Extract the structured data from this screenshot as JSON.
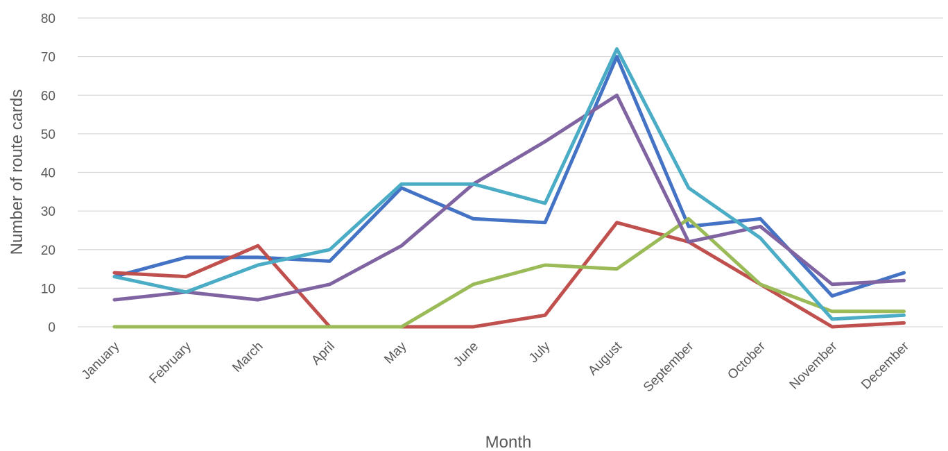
{
  "chart_data": {
    "type": "line",
    "title": "",
    "xlabel": "Month",
    "ylabel": "Number of route cards",
    "ylim": [
      0,
      80
    ],
    "yticks": [
      0,
      10,
      20,
      30,
      40,
      50,
      60,
      70,
      80
    ],
    "grid": true,
    "legend": "none",
    "categories": [
      "January",
      "February",
      "March",
      "April",
      "May",
      "June",
      "July",
      "August",
      "September",
      "October",
      "November",
      "December"
    ],
    "series": [
      {
        "color": "#4472c4",
        "values": [
          13,
          18,
          18,
          17,
          36,
          28,
          27,
          70,
          26,
          28,
          8,
          14
        ]
      },
      {
        "color": "#c0504d",
        "values": [
          14,
          13,
          21,
          0,
          0,
          0,
          3,
          27,
          22,
          11,
          0,
          1
        ]
      },
      {
        "color": "#9bbb59",
        "values": [
          0,
          0,
          0,
          0,
          0,
          11,
          16,
          15,
          28,
          11,
          4,
          4
        ]
      },
      {
        "color": "#8064a2",
        "values": [
          7,
          9,
          7,
          11,
          21,
          37,
          48,
          60,
          22,
          26,
          11,
          12
        ]
      },
      {
        "color": "#4bacc6",
        "values": [
          13,
          9,
          16,
          20,
          37,
          37,
          32,
          72,
          36,
          23,
          2,
          3
        ]
      }
    ]
  }
}
